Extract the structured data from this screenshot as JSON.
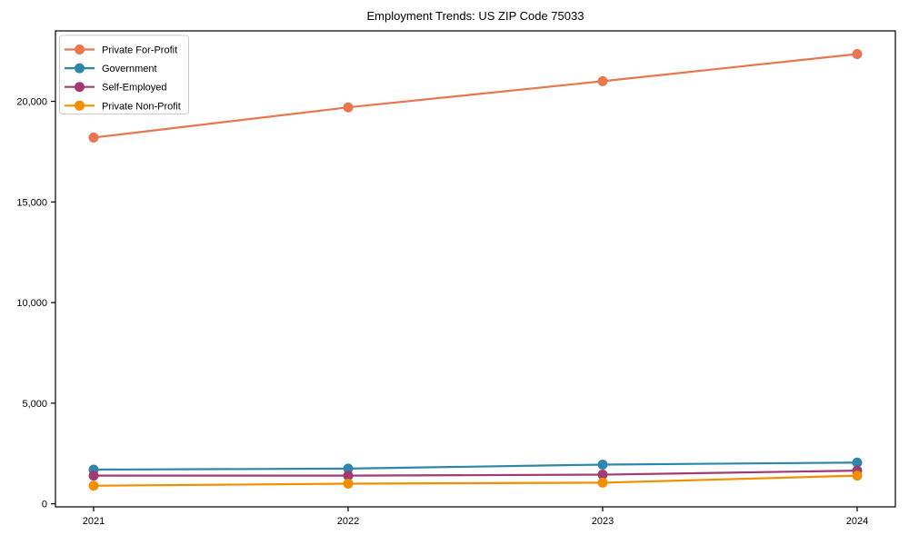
{
  "figure": {
    "background": "#ffffff",
    "frame_color": "#000000",
    "legend_border_color": "#cccccc"
  },
  "chart_data": {
    "type": "line",
    "title": "Employment Trends: US ZIP Code 75033",
    "xlabel": "",
    "ylabel": "",
    "x": [
      2021,
      2022,
      2023,
      2024
    ],
    "xtick_labels": [
      "2021",
      "2022",
      "2023",
      "2024"
    ],
    "yticks": [
      0,
      5000,
      10000,
      15000,
      20000
    ],
    "ytick_labels": [
      "0",
      "5,000",
      "10,000",
      "15,000",
      "20,000"
    ],
    "xlim": [
      2020.85,
      2024.15
    ],
    "ylim": [
      -150,
      23500
    ],
    "grid": false,
    "legend_position": "upper left",
    "marker": "circle",
    "series": [
      {
        "name": "Private For-Profit",
        "color": "#E8764E",
        "values": [
          18200,
          19700,
          21000,
          22350
        ]
      },
      {
        "name": "Government",
        "color": "#2E86AB",
        "values": [
          1700,
          1750,
          1950,
          2050
        ]
      },
      {
        "name": "Self-Employed",
        "color": "#A23B72",
        "values": [
          1400,
          1400,
          1450,
          1650
        ]
      },
      {
        "name": "Private Non-Profit",
        "color": "#F18F01",
        "values": [
          900,
          1000,
          1050,
          1400
        ]
      }
    ]
  }
}
